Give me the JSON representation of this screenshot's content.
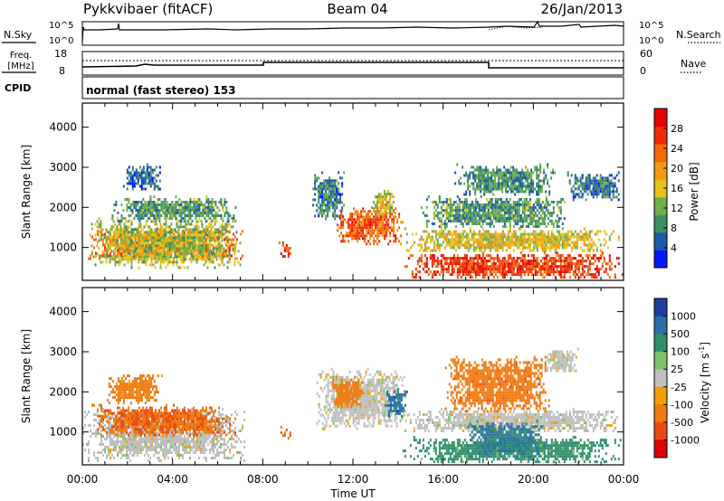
{
  "header": {
    "station": "Pykkvibaer (fitACF)",
    "beam": "Beam 04",
    "date": "26/Jan/2013"
  },
  "strip_labels": {
    "nsky": "N.Sky",
    "nsearch": "N.Search",
    "freq_line1": "Freq.",
    "freq_line2": "[MHz]",
    "nave": "Nave",
    "cpid": "CPID",
    "cpid_value": "normal (fast stereo) 153"
  },
  "strip_ticks": {
    "noise_left": [
      "10^5",
      "10^0"
    ],
    "noise_right": [
      "10^5",
      "10^0"
    ],
    "freq_left": [
      "18",
      "8"
    ],
    "nave_right": [
      "60",
      "0"
    ]
  },
  "colors": {
    "power_scale": [
      "#0018ff",
      "#1e5aa8",
      "#3f8f66",
      "#6fae4a",
      "#e8c21a",
      "#f39a12",
      "#f26a0a",
      "#ee2a08",
      "#e40000"
    ],
    "velocity_scale": [
      "#1c3f9e",
      "#2a6fa8",
      "#2f8f6a",
      "#7ec26a",
      "#bfbfbf",
      "#f2a000",
      "#f07a10",
      "#ec4a10",
      "#dc0000"
    ]
  },
  "chart_data": [
    {
      "type": "heatmap",
      "name": "Power",
      "xlabel": "Time UT",
      "ylabel": "Slant Range [km]",
      "x_ticks": [
        "00:00",
        "04:00",
        "08:00",
        "12:00",
        "16:00",
        "20:00",
        "00:00"
      ],
      "y_ticks": [
        1000,
        2000,
        3000,
        4000
      ],
      "xlim": [
        0,
        24
      ],
      "ylim": [
        180,
        4600
      ],
      "colorbar": {
        "label": "Power [dB]",
        "ticks": [
          4,
          8,
          12,
          16,
          20,
          24,
          28
        ],
        "range": [
          0,
          32
        ]
      },
      "regions": [
        {
          "t0": 0.0,
          "t1": 7.1,
          "r0": 700,
          "r1": 1500,
          "v": 22
        },
        {
          "t0": 0.3,
          "t1": 7.0,
          "r0": 500,
          "r1": 1750,
          "v": 14
        },
        {
          "t0": 1.3,
          "t1": 6.8,
          "r0": 1650,
          "r1": 2300,
          "v": 10
        },
        {
          "t0": 1.8,
          "t1": 3.5,
          "r0": 2450,
          "r1": 3100,
          "v": 6
        },
        {
          "t0": 8.7,
          "t1": 9.3,
          "r0": 800,
          "r1": 1150,
          "v": 27
        },
        {
          "t0": 10.2,
          "t1": 11.6,
          "r0": 1700,
          "r1": 2900,
          "v": 8
        },
        {
          "t0": 11.2,
          "t1": 14.2,
          "r0": 1100,
          "r1": 2000,
          "v": 24
        },
        {
          "t0": 12.8,
          "t1": 13.9,
          "r0": 1800,
          "r1": 2500,
          "v": 15
        },
        {
          "t0": 14.2,
          "t1": 24.0,
          "r0": 250,
          "r1": 900,
          "v": 26
        },
        {
          "t0": 14.2,
          "t1": 23.8,
          "r0": 900,
          "r1": 1500,
          "v": 16
        },
        {
          "t0": 15.0,
          "t1": 21.5,
          "r0": 1500,
          "r1": 2300,
          "v": 10
        },
        {
          "t0": 16.5,
          "t1": 21.0,
          "r0": 2300,
          "r1": 3100,
          "v": 9
        },
        {
          "t0": 21.5,
          "t1": 23.9,
          "r0": 2200,
          "r1": 2900,
          "v": 7
        }
      ]
    },
    {
      "type": "heatmap",
      "name": "Velocity",
      "xlabel": "Time UT",
      "ylabel": "Slant Range [km]",
      "x_ticks": [
        "00:00",
        "04:00",
        "08:00",
        "12:00",
        "16:00",
        "20:00",
        "00:00"
      ],
      "y_ticks": [
        1000,
        2000,
        3000,
        4000
      ],
      "xlim": [
        0,
        24
      ],
      "ylim": [
        180,
        4600
      ],
      "colorbar": {
        "label": "Velocity [m s^-1]",
        "ticks": [
          "1000",
          "500",
          "100",
          "25",
          "-25",
          "-100",
          "-500",
          "-1000"
        ]
      },
      "regions": [
        {
          "t0": 0.0,
          "t1": 7.2,
          "r0": 300,
          "r1": 1600,
          "v": 0
        },
        {
          "t0": 0.4,
          "t1": 6.8,
          "r0": 900,
          "r1": 1700,
          "v": -450
        },
        {
          "t0": 1.0,
          "t1": 3.5,
          "r0": 1700,
          "r1": 2500,
          "v": -200
        },
        {
          "t0": 8.7,
          "t1": 9.3,
          "r0": 800,
          "r1": 1150,
          "v": -450
        },
        {
          "t0": 10.3,
          "t1": 14.4,
          "r0": 1100,
          "r1": 2600,
          "v": 0
        },
        {
          "t0": 11.0,
          "t1": 12.5,
          "r0": 1600,
          "r1": 2400,
          "v": -250
        },
        {
          "t0": 13.4,
          "t1": 14.4,
          "r0": 1400,
          "r1": 2100,
          "v": 700
        },
        {
          "t0": 14.2,
          "t1": 23.8,
          "r0": 1000,
          "r1": 1600,
          "v": 0
        },
        {
          "t0": 14.2,
          "t1": 23.9,
          "r0": 250,
          "r1": 900,
          "v": 200
        },
        {
          "t0": 17.0,
          "t1": 20.5,
          "r0": 400,
          "r1": 1300,
          "v": 550
        },
        {
          "t0": 16.0,
          "t1": 20.8,
          "r0": 1500,
          "r1": 2900,
          "v": -350
        },
        {
          "t0": 20.5,
          "t1": 22.0,
          "r0": 2500,
          "r1": 3100,
          "v": 0
        }
      ]
    }
  ]
}
